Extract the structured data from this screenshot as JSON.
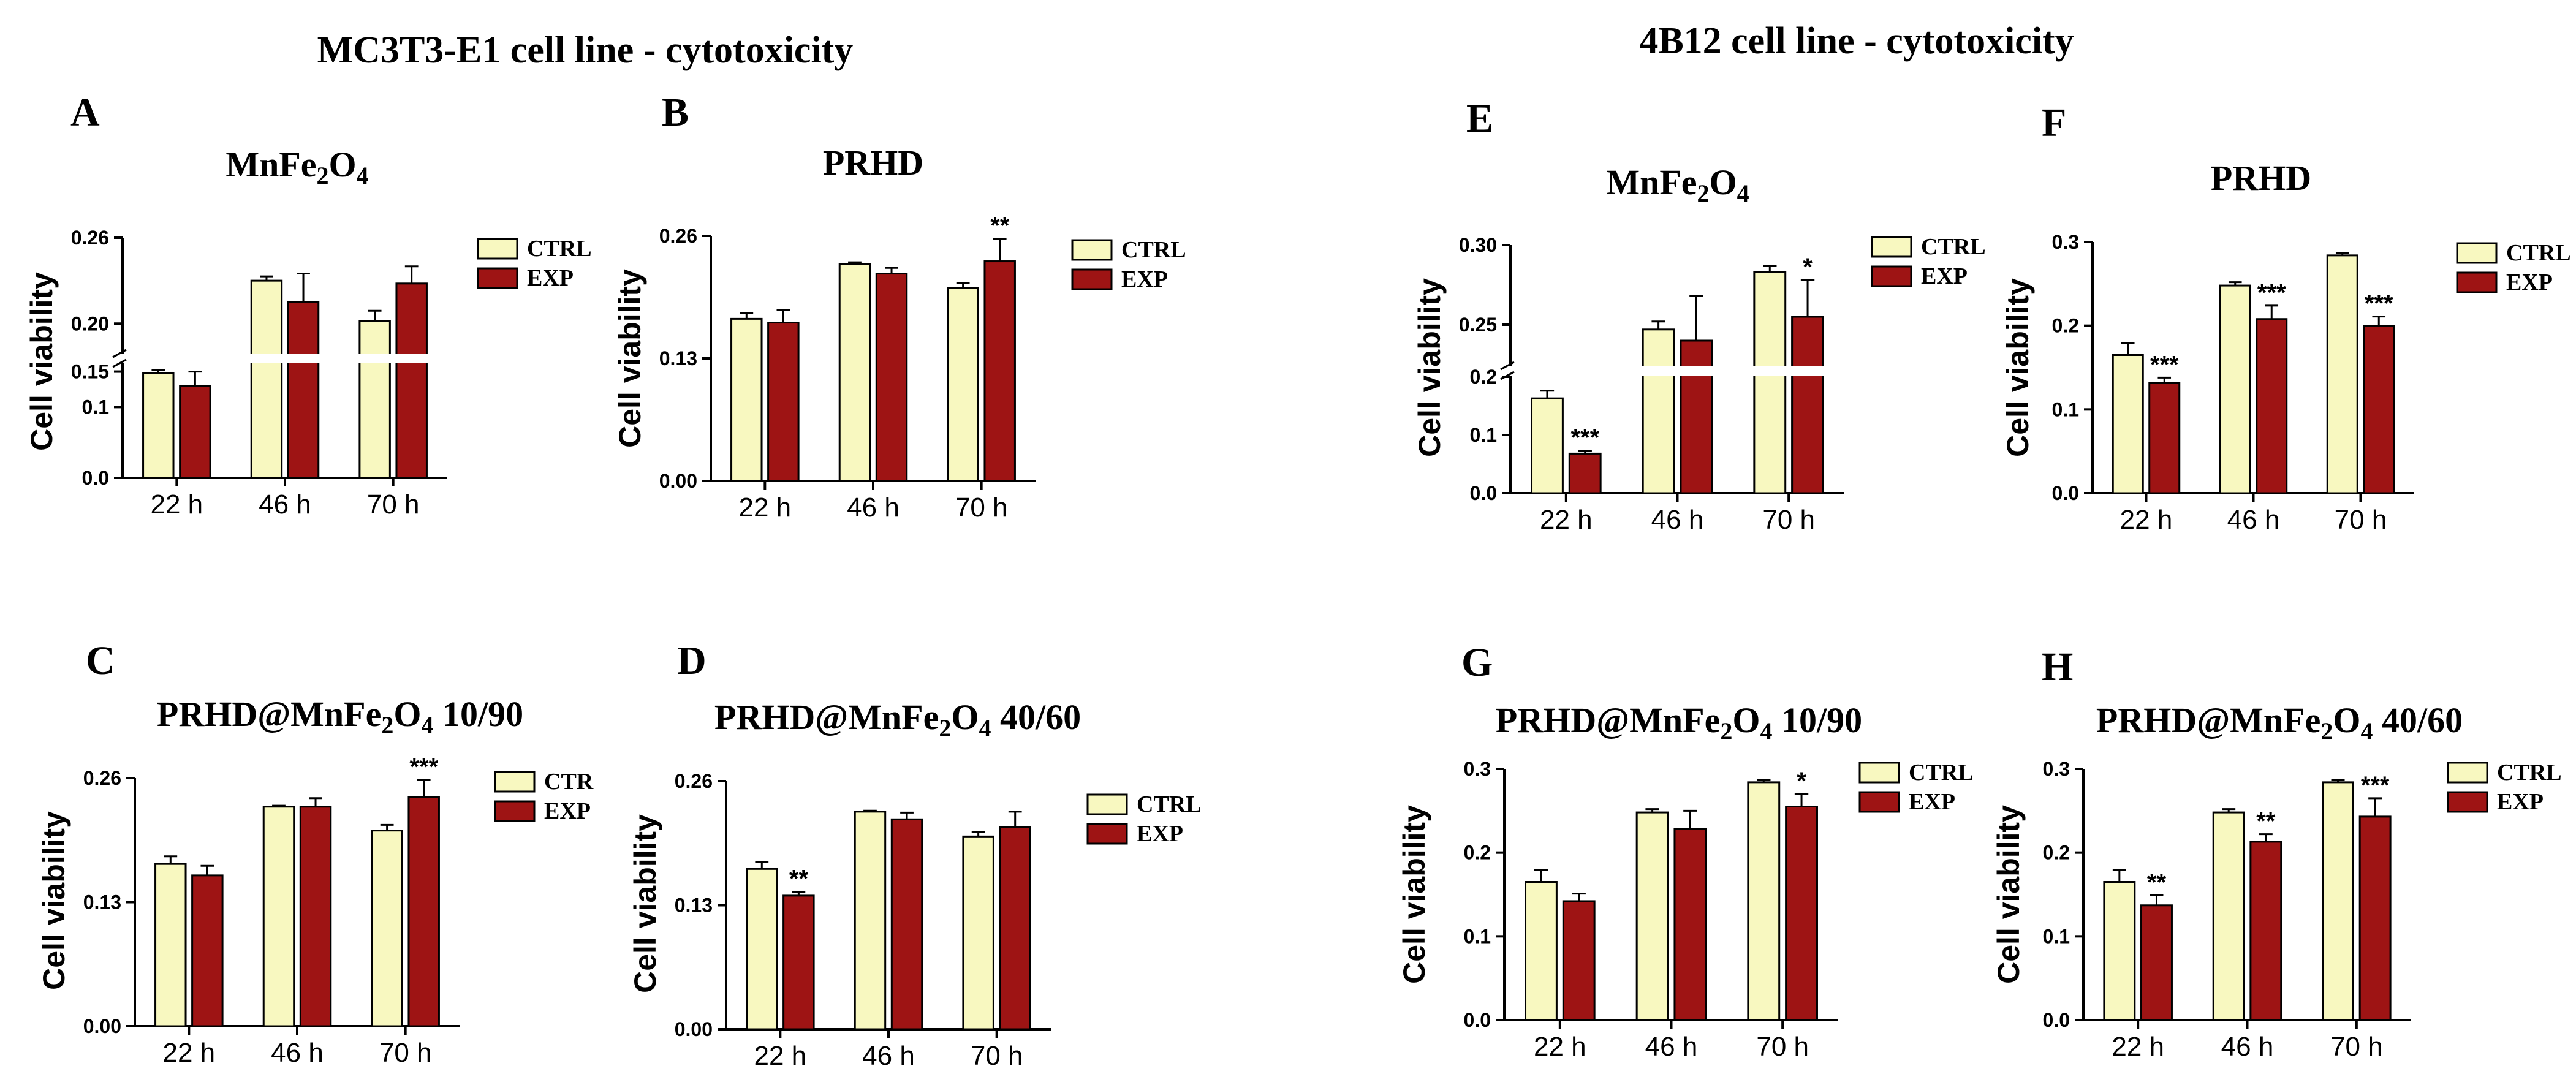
{
  "figure": {
    "left_title": "MC3T3-E1 cell line - cytotoxicity",
    "right_title": "4B12 cell line - cytotoxicity"
  },
  "colors": {
    "ctrl": "#F8F8C0",
    "exp": "#9E1414",
    "axis": "#000000",
    "text": "#000000"
  },
  "chart_data": [
    {
      "id": "A",
      "type": "bar",
      "title": "MnFe2O4",
      "title_sub": "MnFe₂O₄",
      "ylabel": "Cell viability",
      "categories": [
        "22 h",
        "46 h",
        "70 h"
      ],
      "legend": [
        "CTRL",
        "EXP"
      ],
      "axis_break": true,
      "ylim_lower": [
        0,
        0.16
      ],
      "ylim_upper": [
        0.18,
        0.26
      ],
      "yticks": [
        "0.0",
        "0.1",
        "0.15",
        "0.20",
        "0.26"
      ],
      "series": [
        {
          "name": "CTRL",
          "values": [
            0.148,
            0.23,
            0.202
          ],
          "errors": [
            0.004,
            0.003,
            0.007
          ]
        },
        {
          "name": "EXP",
          "values": [
            0.13,
            0.215,
            0.228
          ],
          "errors": [
            0.02,
            0.02,
            0.012
          ]
        }
      ],
      "annotations": [
        "",
        "",
        ""
      ]
    },
    {
      "id": "B",
      "type": "bar",
      "title": "PRHD",
      "ylabel": "Cell viability",
      "categories": [
        "22 h",
        "46 h",
        "70 h"
      ],
      "legend": [
        "CTRL",
        "EXP"
      ],
      "ylim": [
        0,
        0.26
      ],
      "yticks": [
        "0.00",
        "0.13",
        "0.26"
      ],
      "series": [
        {
          "name": "CTRL",
          "values": [
            0.172,
            0.23,
            0.205
          ],
          "errors": [
            0.006,
            0.002,
            0.005
          ]
        },
        {
          "name": "EXP",
          "values": [
            0.168,
            0.22,
            0.233
          ],
          "errors": [
            0.013,
            0.006,
            0.024
          ]
        }
      ],
      "annotations": [
        "",
        "",
        "**"
      ]
    },
    {
      "id": "C",
      "type": "bar",
      "title": "PRHD@MnFe2O4 10/90",
      "title_pre": "PRHD@MnFe",
      "title_mid": "O",
      "title_post": " 10/90",
      "ylabel": "Cell viability",
      "categories": [
        "22 h",
        "46 h",
        "70 h"
      ],
      "legend": [
        "CTR",
        "EXP"
      ],
      "ylim": [
        0,
        0.26
      ],
      "yticks": [
        "0.00",
        "0.13",
        "0.26"
      ],
      "series": [
        {
          "name": "CTR",
          "values": [
            0.17,
            0.23,
            0.205
          ],
          "errors": [
            0.008,
            0.001,
            0.006
          ]
        },
        {
          "name": "EXP",
          "values": [
            0.158,
            0.23,
            0.24
          ],
          "errors": [
            0.01,
            0.009,
            0.018
          ]
        }
      ],
      "annotations": [
        "",
        "",
        "***"
      ]
    },
    {
      "id": "D",
      "type": "bar",
      "title": "PRHD@MnFe2O4 40/60",
      "title_pre": "PRHD@MnFe",
      "title_mid": "O",
      "title_post": " 40/60",
      "ylabel": "Cell viability",
      "categories": [
        "22 h",
        "46 h",
        "70 h"
      ],
      "legend": [
        "CTRL",
        "EXP"
      ],
      "ylim": [
        0,
        0.26
      ],
      "yticks": [
        "0.00",
        "0.13",
        "0.26"
      ],
      "series": [
        {
          "name": "CTRL",
          "values": [
            0.168,
            0.228,
            0.202
          ],
          "errors": [
            0.007,
            0.001,
            0.005
          ]
        },
        {
          "name": "EXP",
          "values": [
            0.14,
            0.22,
            0.212
          ],
          "errors": [
            0.004,
            0.007,
            0.016
          ]
        }
      ],
      "annotations": [
        "**",
        "",
        ""
      ]
    },
    {
      "id": "E",
      "type": "bar",
      "title": "MnFe2O4",
      "title_sub": "MnFe₂O₄",
      "ylabel": "Cell viability",
      "categories": [
        "22 h",
        "46 h",
        "70 h"
      ],
      "legend": [
        "CTRL",
        "EXP"
      ],
      "axis_break": true,
      "ylim_lower": [
        0,
        0.2
      ],
      "ylim_upper": [
        0.225,
        0.3
      ],
      "yticks": [
        "0.0",
        "0.1",
        "0.2",
        "0.25",
        "0.30"
      ],
      "series": [
        {
          "name": "CTRL",
          "values": [
            0.163,
            0.247,
            0.283
          ],
          "errors": [
            0.013,
            0.005,
            0.004
          ]
        },
        {
          "name": "EXP",
          "values": [
            0.068,
            0.24,
            0.255
          ],
          "errors": [
            0.005,
            0.028,
            0.023
          ]
        }
      ],
      "annotations": [
        "***",
        "",
        "*"
      ]
    },
    {
      "id": "F",
      "type": "bar",
      "title": "PRHD",
      "ylabel": "Cell viability",
      "categories": [
        "22 h",
        "46 h",
        "70 h"
      ],
      "legend": [
        "CTRL",
        "EXP"
      ],
      "ylim": [
        0,
        0.3
      ],
      "yticks": [
        "0.0",
        "0.1",
        "0.2",
        "0.3"
      ],
      "series": [
        {
          "name": "CTRL",
          "values": [
            0.165,
            0.248,
            0.284
          ],
          "errors": [
            0.014,
            0.004,
            0.003
          ]
        },
        {
          "name": "EXP",
          "values": [
            0.132,
            0.208,
            0.2
          ],
          "errors": [
            0.006,
            0.016,
            0.011
          ]
        }
      ],
      "annotations": [
        "***",
        "***",
        "***"
      ]
    },
    {
      "id": "G",
      "type": "bar",
      "title": "PRHD@MnFe2O4 10/90",
      "title_pre": "PRHD@MnFe",
      "title_mid": "O",
      "title_post": " 10/90",
      "ylabel": "Cell viability",
      "categories": [
        "22 h",
        "46 h",
        "70 h"
      ],
      "legend": [
        "CTRL",
        "EXP"
      ],
      "ylim": [
        0,
        0.3
      ],
      "yticks": [
        "0.0",
        "0.1",
        "0.2",
        "0.3"
      ],
      "series": [
        {
          "name": "CTRL",
          "values": [
            0.165,
            0.248,
            0.284
          ],
          "errors": [
            0.014,
            0.004,
            0.003
          ]
        },
        {
          "name": "EXP",
          "values": [
            0.142,
            0.228,
            0.255
          ],
          "errors": [
            0.009,
            0.022,
            0.015
          ]
        }
      ],
      "annotations": [
        "",
        "",
        "*"
      ]
    },
    {
      "id": "H",
      "type": "bar",
      "title": "PRHD@MnFe2O4 40/60",
      "title_pre": "PRHD@MnFe",
      "title_mid": "O",
      "title_post": " 40/60",
      "ylabel": "Cell viability",
      "categories": [
        "22 h",
        "46 h",
        "70 h"
      ],
      "legend": [
        "CTRL",
        "EXP"
      ],
      "ylim": [
        0,
        0.3
      ],
      "yticks": [
        "0.0",
        "0.1",
        "0.2",
        "0.3"
      ],
      "series": [
        {
          "name": "CTRL",
          "values": [
            0.165,
            0.248,
            0.284
          ],
          "errors": [
            0.014,
            0.004,
            0.003
          ]
        },
        {
          "name": "EXP",
          "values": [
            0.137,
            0.213,
            0.243
          ],
          "errors": [
            0.012,
            0.009,
            0.022
          ]
        }
      ],
      "annotations": [
        "**",
        "**",
        "***"
      ]
    }
  ]
}
